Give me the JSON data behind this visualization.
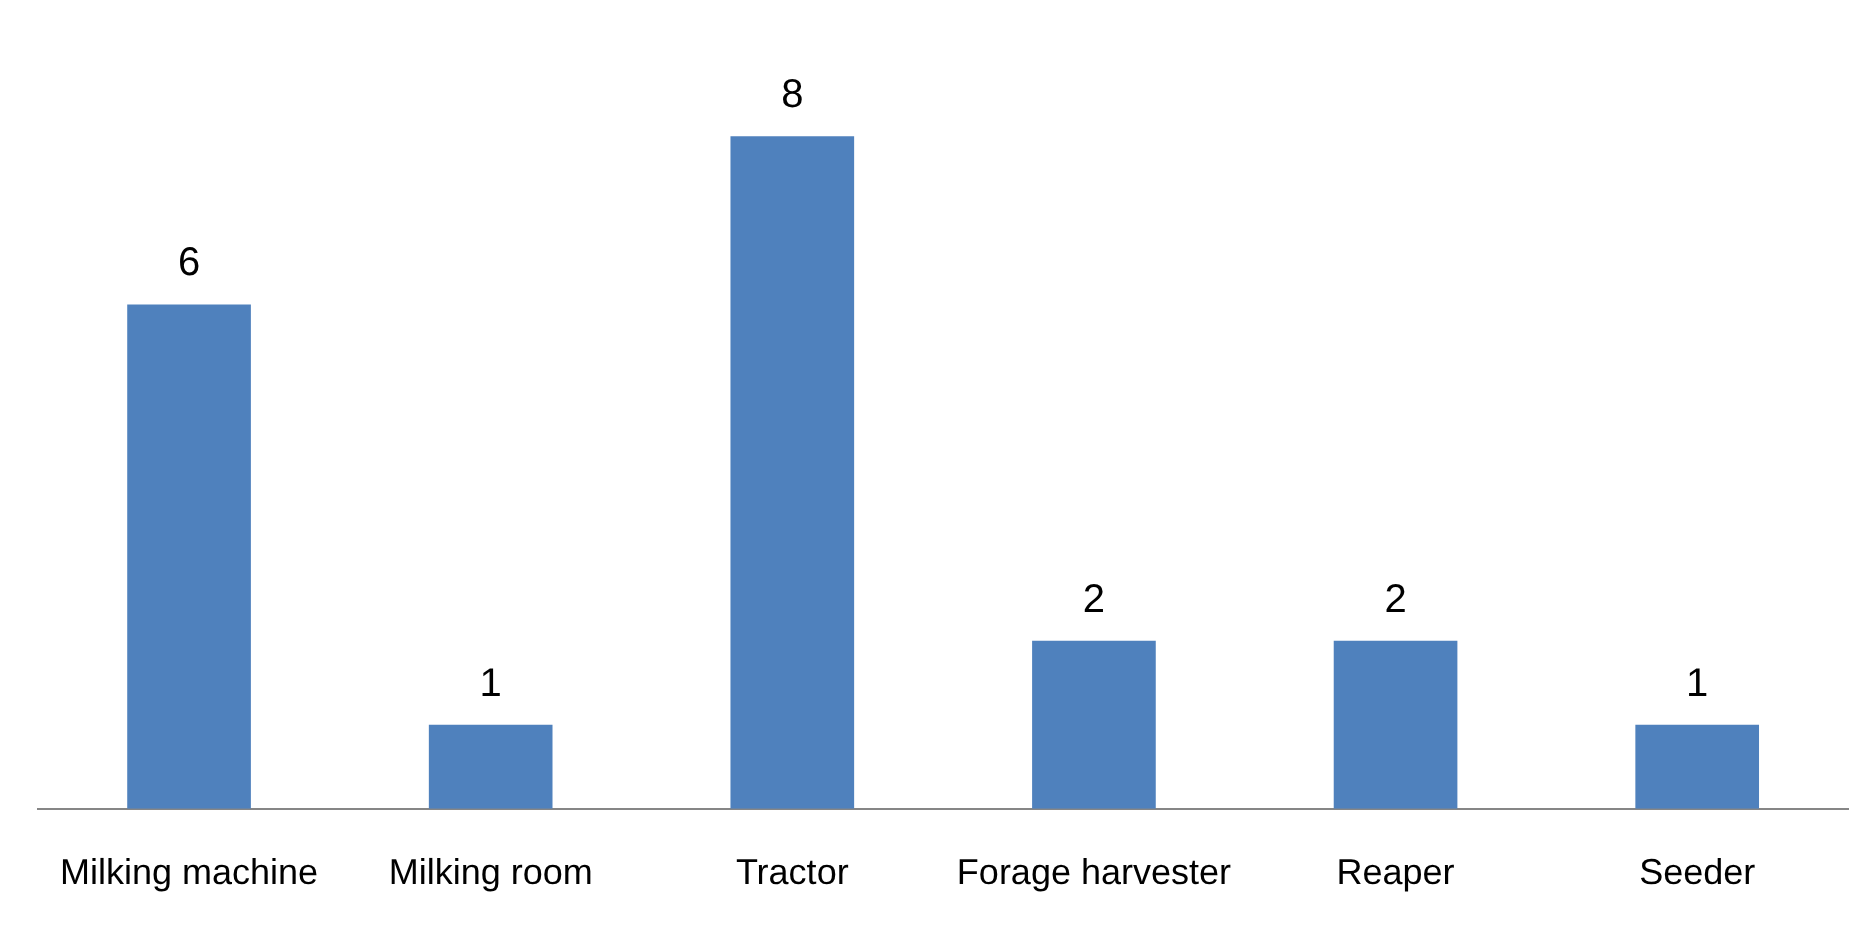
{
  "chart_data": {
    "type": "bar",
    "categories": [
      "Milking machine",
      "Milking room",
      "Tractor",
      "Forage harvester",
      "Reaper",
      "Seeder"
    ],
    "values": [
      6,
      1,
      8,
      2,
      2,
      1
    ],
    "color": "#4f81bd",
    "data_labels": true,
    "grid": false,
    "legend": false
  }
}
